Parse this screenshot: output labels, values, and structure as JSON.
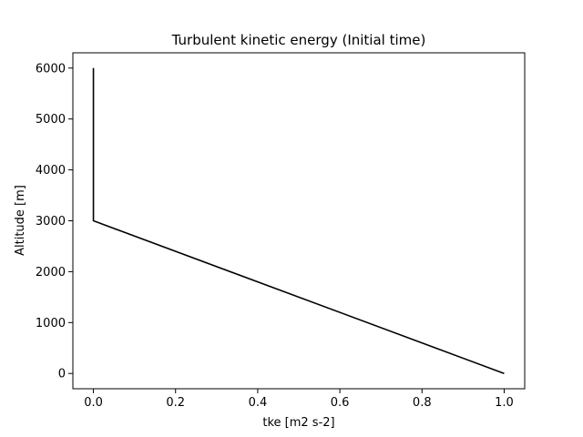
{
  "chart_data": {
    "type": "line",
    "title": "Turbulent kinetic energy (Initial time)",
    "xlabel": "tke [m2 s-2]",
    "ylabel": "Altitude [m]",
    "xlim": [
      -0.05,
      1.05
    ],
    "ylim": [
      -300,
      6300
    ],
    "xticks": [
      0.0,
      0.2,
      0.4,
      0.6,
      0.8,
      1.0
    ],
    "xtick_labels": [
      "0.0",
      "0.2",
      "0.4",
      "0.6",
      "0.8",
      "1.0"
    ],
    "yticks": [
      0,
      1000,
      2000,
      3000,
      4000,
      5000,
      6000
    ],
    "ytick_labels": [
      "0",
      "1000",
      "2000",
      "3000",
      "4000",
      "5000",
      "6000"
    ],
    "grid": false,
    "legend": "none",
    "series": [
      {
        "color": "#000000",
        "x": [
          1.0,
          0.0,
          0.0
        ],
        "y": [
          0,
          3000,
          6000
        ]
      }
    ]
  }
}
